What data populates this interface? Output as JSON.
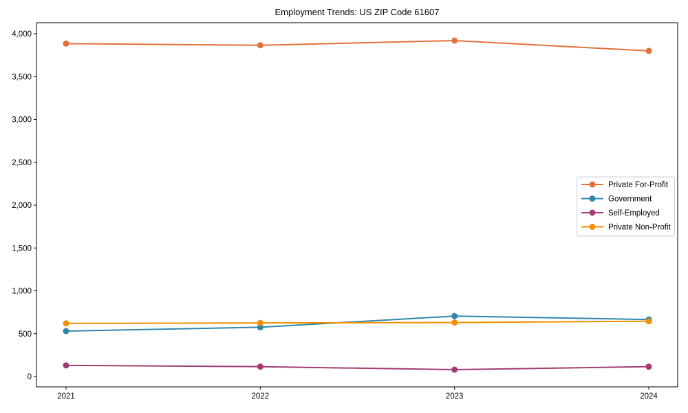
{
  "figure": {
    "title": "Employment Trends: US ZIP Code 61607"
  },
  "chart_data": {
    "type": "line",
    "title": "Employment Trends: US ZIP Code 61607",
    "x_categories": [
      "2021",
      "2022",
      "2023",
      "2024"
    ],
    "series": [
      {
        "name": "Private For-Profit",
        "color": "#E2703A",
        "values": [
          3885,
          3865,
          3920,
          3800
        ]
      },
      {
        "name": "Government",
        "color": "#2E86AB",
        "values": [
          530,
          575,
          705,
          665
        ]
      },
      {
        "name": "Self-Employed",
        "color": "#A23B72",
        "values": [
          130,
          115,
          80,
          115
        ]
      },
      {
        "name": "Private Non-Profit",
        "color": "#F18F01",
        "values": [
          620,
          625,
          630,
          645
        ]
      }
    ],
    "ylim": [
      0,
      4000
    ],
    "yticks": {
      "values": [
        0,
        500,
        1000,
        1500,
        2000,
        2500,
        3000,
        3500,
        4000
      ],
      "labels": [
        "0",
        "500",
        "1,000",
        "1,500",
        "2,000",
        "2,500",
        "3,000",
        "3,500",
        "4,000"
      ]
    },
    "grid": false,
    "marker": "circle",
    "line_width": 2,
    "legend_position": "center-right",
    "axis_color": "#000000",
    "legend_border_color": "#cccccc",
    "background_color": "#ffffff"
  }
}
